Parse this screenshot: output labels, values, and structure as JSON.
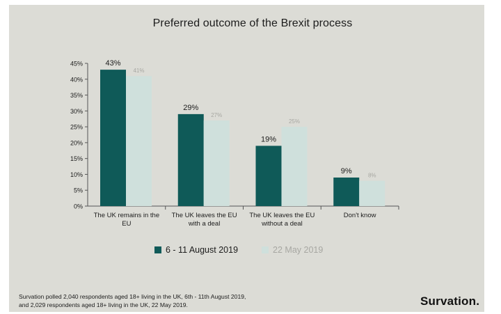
{
  "chart_data": {
    "type": "bar",
    "title": "Preferred outcome of the Brexit process",
    "categories": [
      [
        "The UK remains in the",
        "EU"
      ],
      [
        "The UK leaves the EU",
        "with a deal"
      ],
      [
        "The UK leaves the EU",
        "without a deal"
      ],
      [
        "Don't know"
      ]
    ],
    "series": [
      {
        "name": "6 - 11 August 2019",
        "values": [
          43,
          29,
          19,
          9
        ],
        "labels": [
          "43%",
          "29%",
          "19%",
          "9%"
        ],
        "color": "#0f5a58",
        "label_color": "#1c1c1c"
      },
      {
        "name": "22 May 2019",
        "values": [
          41,
          27,
          25,
          8
        ],
        "labels": [
          "41%",
          "27%",
          "25%",
          "8%"
        ],
        "color": "#cfe0dc",
        "label_color": "#a7a7a2"
      }
    ],
    "ylim": [
      0,
      45
    ],
    "yticks": [
      "0%",
      "5%",
      "10%",
      "15%",
      "20%",
      "25%",
      "30%",
      "35%",
      "40%",
      "45%"
    ],
    "ytick_values": [
      0,
      5,
      10,
      15,
      20,
      25,
      30,
      35,
      40,
      45
    ],
    "grid": false,
    "legend_position": "bottom"
  },
  "footnote": {
    "line1": "Survation polled 2,040 respondents aged 18+ living in the UK, 6th - 11th August 2019,",
    "line2": "and 2,029 respondents aged 18+ living in the UK, 22 May 2019."
  },
  "brand": "Survation."
}
